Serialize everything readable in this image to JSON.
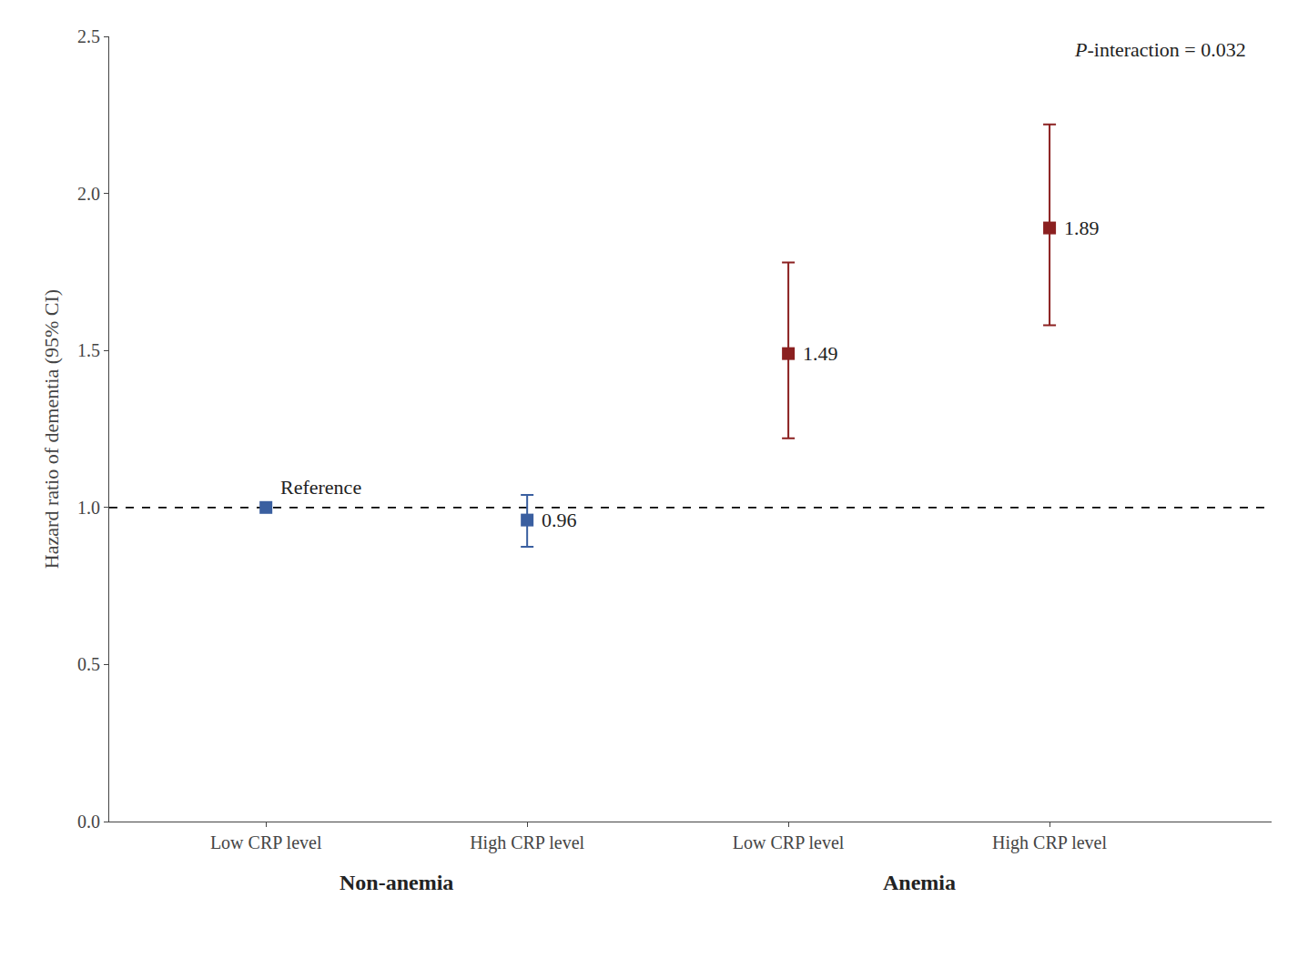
{
  "chart_data": {
    "type": "scatter",
    "categories": [
      "Low CRP level",
      "High CRP level",
      "Low CRP level",
      "High CRP level"
    ],
    "groups": [
      "Non-anemia",
      "Non-anemia",
      "Anemia",
      "Anemia"
    ],
    "values": [
      1.0,
      0.96,
      1.49,
      1.89
    ],
    "ci_low": [
      1.0,
      0.875,
      1.22,
      1.58
    ],
    "ci_high": [
      1.0,
      1.04,
      1.78,
      2.22
    ],
    "value_labels": [
      "Reference",
      "0.96",
      "1.49",
      "1.89"
    ],
    "data_labels": true,
    "colors": [
      "#3A5FA0",
      "#3A5FA0",
      "#8B2020",
      "#8B2020"
    ],
    "marker": "square",
    "ylabel": "Hazard ratio of dementia (95% CI)",
    "ylim": [
      0.0,
      2.5
    ],
    "yticks": [
      {
        "value": 0.0,
        "label": "0.0"
      },
      0.5,
      {
        "value": 1.0,
        "label": "1.0"
      },
      1.5,
      {
        "value": 2.0,
        "label": "2.0"
      },
      2.5
    ],
    "reference_line": {
      "y": 1.0,
      "line_style": "dashed"
    },
    "annotations": [
      {
        "text": "P-interaction = 0.032"
      }
    ],
    "grid": false
  }
}
